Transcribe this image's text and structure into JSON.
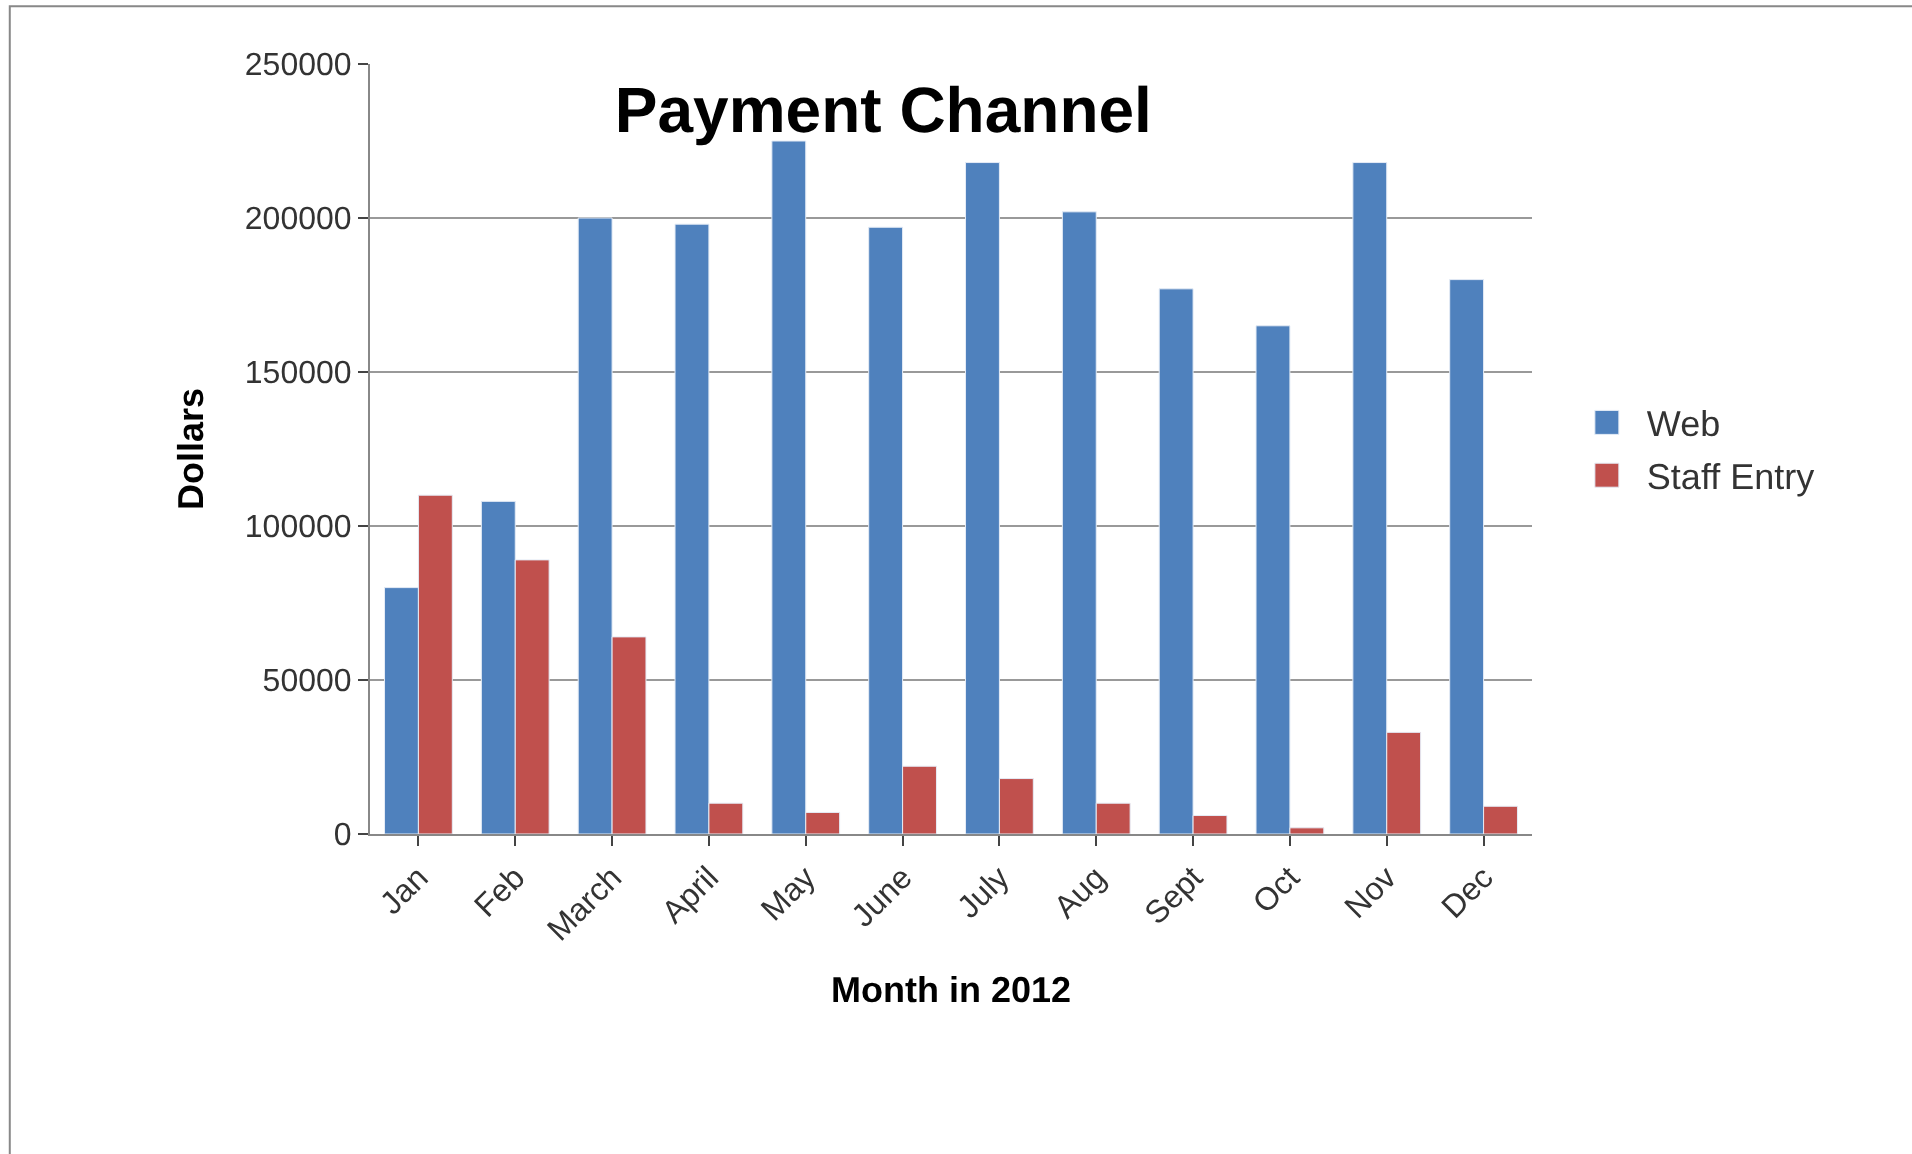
{
  "chart_data": {
    "type": "bar",
    "title": "Payment Channel",
    "xlabel": "Month in 2012",
    "ylabel": "Dollars",
    "categories": [
      "Jan",
      "Feb",
      "March",
      "April",
      "May",
      "June",
      "July",
      "Aug",
      "Sept",
      "Oct",
      "Nov",
      "Dec"
    ],
    "series": [
      {
        "name": "Web",
        "color": "#4f81bd",
        "values": [
          80000,
          108000,
          200000,
          198000,
          225000,
          197000,
          218000,
          202000,
          177000,
          165000,
          218000,
          180000
        ]
      },
      {
        "name": "Staff Entry",
        "color": "#c0504d",
        "values": [
          110000,
          89000,
          64000,
          10000,
          7000,
          22000,
          18000,
          10000,
          6000,
          2000,
          33000,
          9000
        ]
      }
    ],
    "ylim": [
      0,
      250000
    ],
    "yticks": [
      0,
      50000,
      100000,
      150000,
      200000,
      250000
    ],
    "grid": "y",
    "legend": "right"
  }
}
